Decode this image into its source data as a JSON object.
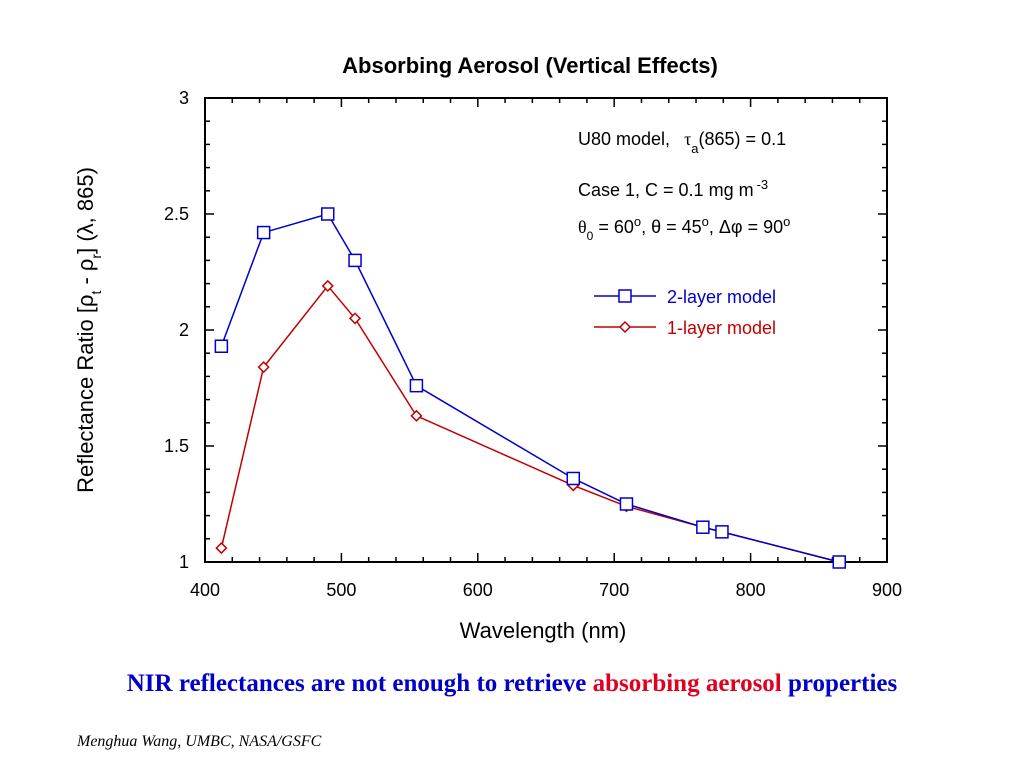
{
  "chart_data": {
    "type": "line",
    "title": "Absorbing Aerosol (Vertical Effects)",
    "xlabel": "Wavelength (nm)",
    "ylabel": "Reflectance Ratio [ρt - ρr] (λ, 865)",
    "xlim": [
      400,
      900
    ],
    "ylim": [
      1,
      3
    ],
    "x_ticks": [
      400,
      500,
      600,
      700,
      800,
      900
    ],
    "y_ticks": [
      1,
      1.5,
      2,
      2.5,
      3
    ],
    "y_tick_labels": [
      "1",
      "1.5",
      "2",
      "2.5",
      "3"
    ],
    "grid": false,
    "legend_position": "upper-right",
    "series": [
      {
        "name": "2-layer model",
        "color": "#0000c8",
        "marker": "square",
        "x": [
          412,
          443,
          490,
          510,
          555,
          670,
          709,
          765,
          779,
          865
        ],
        "y": [
          1.93,
          2.42,
          2.5,
          2.3,
          1.76,
          1.36,
          1.25,
          1.15,
          1.13,
          1.0
        ]
      },
      {
        "name": "1-layer model",
        "color": "#c00000",
        "marker": "diamond",
        "x": [
          412,
          443,
          490,
          510,
          555,
          670,
          709,
          765,
          779,
          865
        ],
        "y": [
          1.06,
          1.84,
          2.19,
          2.05,
          1.63,
          1.33,
          1.24,
          1.15,
          1.13,
          1.0
        ]
      }
    ],
    "annotations": {
      "line1_prefix": "U80 model,",
      "line1_tau": "τ",
      "line1_tau_sub": "a",
      "line1_rest": "(865) = 0.1",
      "line2": "Case 1, C = 0.1 mg m",
      "line2_sup": "-3",
      "line3_theta0": "θ",
      "line3_sub0": "0",
      "line3_a": " = 60",
      "line3_deg": "o",
      "line3_b": ", θ = 45",
      "line3_c": ", Δφ = 90"
    }
  },
  "caption": {
    "part1": "NIR reflectances are not enough to retrieve ",
    "part2": "absorbing aerosol",
    "part3": " properties",
    "color_blue": "#0000c8",
    "color_red": "#e00020"
  },
  "credit": "Menghua Wang, UMBC, NASA/GSFC"
}
